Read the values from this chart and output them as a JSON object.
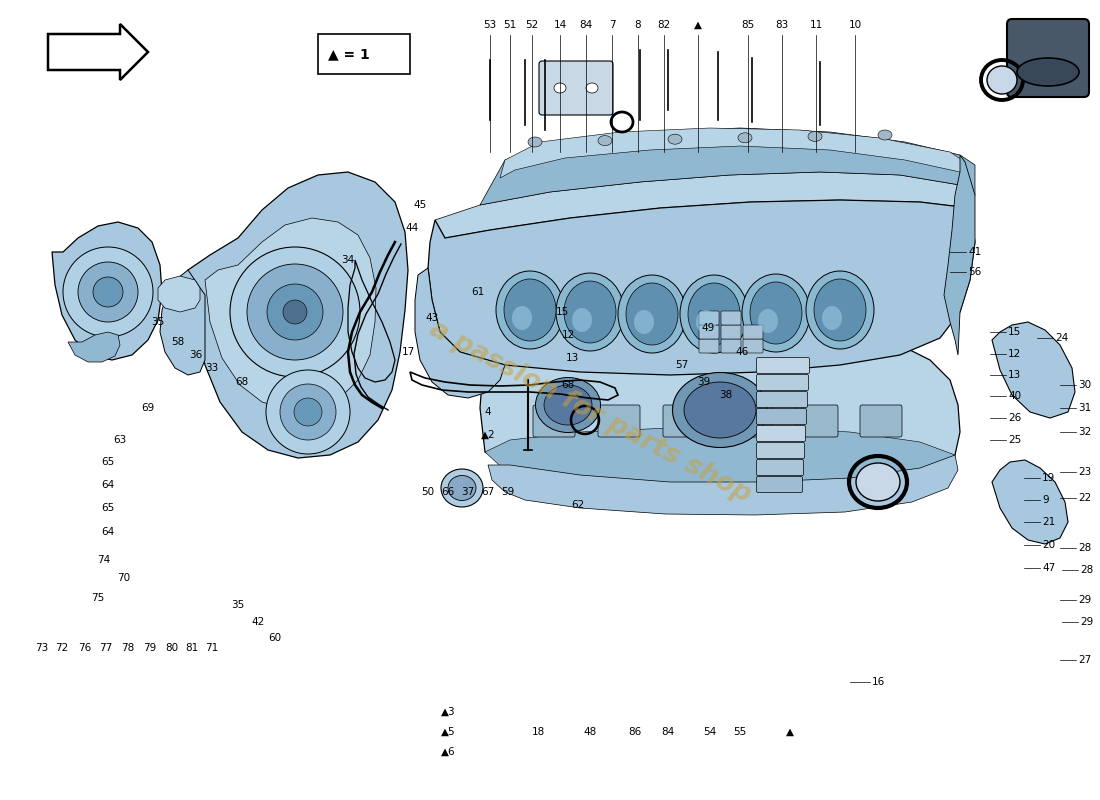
{
  "bg_color": "#ffffff",
  "figsize": [
    11.0,
    8.0
  ],
  "dpi": 100,
  "watermark_text": "a passion for parts shop",
  "watermark_color": "#c8a040",
  "watermark_alpha": 0.55,
  "engine_color": "#a8c8e0",
  "engine_color2": "#b8d5e8",
  "engine_color3": "#90b8d0",
  "engine_dark": "#6888a0",
  "engine_light": "#c8dff0",
  "line_color": "#000000",
  "label_fontsize": 7.5,
  "label_color": "#000000",
  "top_labels": [
    [
      "53",
      490,
      770
    ],
    [
      "51",
      510,
      770
    ],
    [
      "52",
      532,
      770
    ],
    [
      "14",
      560,
      770
    ],
    [
      "84",
      586,
      770
    ],
    [
      "7",
      612,
      770
    ],
    [
      "8",
      638,
      770
    ],
    [
      "82",
      664,
      770
    ],
    [
      "▲",
      698,
      770
    ],
    [
      "85",
      748,
      770
    ],
    [
      "83",
      782,
      770
    ],
    [
      "11",
      816,
      770
    ],
    [
      "10",
      855,
      770
    ]
  ],
  "right_labels": [
    [
      "41",
      968,
      548
    ],
    [
      "56",
      968,
      528
    ],
    [
      "15",
      1008,
      468
    ],
    [
      "12",
      1008,
      446
    ],
    [
      "13",
      1008,
      425
    ],
    [
      "40",
      1008,
      404
    ],
    [
      "26",
      1008,
      382
    ],
    [
      "25",
      1008,
      360
    ],
    [
      "24",
      1055,
      462
    ],
    [
      "19",
      1042,
      322
    ],
    [
      "9",
      1042,
      300
    ],
    [
      "21",
      1042,
      278
    ],
    [
      "20",
      1042,
      255
    ],
    [
      "47",
      1042,
      232
    ],
    [
      "30",
      1078,
      415
    ],
    [
      "31",
      1078,
      392
    ],
    [
      "32",
      1078,
      368
    ],
    [
      "23",
      1078,
      328
    ],
    [
      "22",
      1078,
      302
    ],
    [
      "28",
      1078,
      252
    ],
    [
      "28",
      1080,
      230
    ],
    [
      "29",
      1078,
      200
    ],
    [
      "29",
      1080,
      178
    ],
    [
      "27",
      1078,
      140
    ]
  ],
  "left_labels": [
    [
      "35",
      158,
      478
    ],
    [
      "58",
      178,
      458
    ],
    [
      "36",
      196,
      445
    ],
    [
      "33",
      212,
      432
    ],
    [
      "68",
      242,
      418
    ],
    [
      "63",
      120,
      360
    ],
    [
      "65",
      108,
      338
    ],
    [
      "64",
      108,
      315
    ],
    [
      "65",
      108,
      292
    ],
    [
      "64",
      108,
      268
    ],
    [
      "69",
      148,
      392
    ],
    [
      "74",
      104,
      240
    ],
    [
      "70",
      124,
      222
    ],
    [
      "75",
      98,
      202
    ],
    [
      "73",
      42,
      152
    ],
    [
      "72",
      62,
      152
    ],
    [
      "76",
      85,
      152
    ],
    [
      "77",
      106,
      152
    ],
    [
      "78",
      128,
      152
    ],
    [
      "79",
      150,
      152
    ],
    [
      "80",
      172,
      152
    ],
    [
      "81",
      192,
      152
    ],
    [
      "71",
      212,
      152
    ],
    [
      "35",
      238,
      195
    ],
    [
      "42",
      258,
      178
    ],
    [
      "60",
      275,
      162
    ]
  ],
  "center_labels": [
    [
      "45",
      420,
      595
    ],
    [
      "44",
      412,
      572
    ],
    [
      "34",
      348,
      540
    ],
    [
      "61",
      478,
      508
    ],
    [
      "43",
      432,
      482
    ],
    [
      "17",
      408,
      448
    ],
    [
      "4",
      488,
      388
    ],
    [
      "▲2",
      488,
      365
    ],
    [
      "50",
      428,
      308
    ],
    [
      "66",
      448,
      308
    ],
    [
      "37",
      468,
      308
    ],
    [
      "67",
      488,
      308
    ],
    [
      "59",
      508,
      308
    ],
    [
      "62",
      578,
      295
    ],
    [
      "57",
      682,
      435
    ],
    [
      "39",
      704,
      418
    ],
    [
      "38",
      726,
      405
    ],
    [
      "49",
      708,
      472
    ],
    [
      "46",
      742,
      448
    ],
    [
      "15",
      562,
      488
    ],
    [
      "12",
      568,
      465
    ],
    [
      "13",
      572,
      442
    ],
    [
      "68",
      568,
      415
    ]
  ],
  "bottom_labels": [
    [
      "▲3",
      448,
      88
    ],
    [
      "▲5",
      448,
      68
    ],
    [
      "▲6",
      448,
      48
    ],
    [
      "18",
      538,
      68
    ],
    [
      "48",
      590,
      68
    ],
    [
      "86",
      635,
      68
    ],
    [
      "84",
      668,
      68
    ],
    [
      "54",
      710,
      68
    ],
    [
      "55",
      740,
      68
    ],
    [
      "▲",
      790,
      68
    ]
  ],
  "label_16": [
    "16",
    872,
    118
  ]
}
